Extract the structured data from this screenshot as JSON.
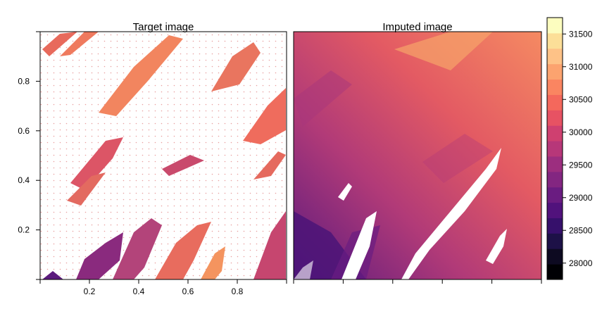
{
  "chart_data": [
    {
      "type": "heatmap",
      "title": "Target image",
      "xlim": [
        0,
        1
      ],
      "ylim": [
        0,
        1
      ],
      "x_ticks": [
        0.2,
        0.4,
        0.6,
        0.8
      ],
      "y_ticks": [
        0.2,
        0.4,
        0.6,
        0.8
      ],
      "x_tick_labels": [
        "0.2",
        "0.4",
        "0.6",
        "0.8"
      ],
      "y_tick_labels": [
        "0.2",
        "0.4",
        "0.6",
        "0.8"
      ],
      "grid": false
    },
    {
      "type": "heatmap",
      "title": "Imputed image",
      "xlim": [
        0,
        1
      ],
      "ylim": [
        0,
        1
      ],
      "x_ticks": [
        0.2,
        0.4,
        0.6,
        0.8
      ],
      "grid": false
    }
  ],
  "colorbar": {
    "range": [
      27750,
      31750
    ],
    "ticks": [
      28000,
      28500,
      29000,
      29500,
      30000,
      30500,
      31000,
      31500
    ],
    "tick_labels": [
      "28000",
      "28500",
      "29000",
      "29500",
      "30000",
      "30500",
      "31000",
      "31500"
    ],
    "colors": [
      "#000004",
      "#0d0a21",
      "#1d1147",
      "#36106b",
      "#51127c",
      "#6a1c81",
      "#832681",
      "#9c2e7f",
      "#b73779",
      "#cf4070",
      "#e75263",
      "#f4685c",
      "#fa8561",
      "#fca36f",
      "#fec287",
      "#fcdf98",
      "#fcfdbf"
    ]
  }
}
